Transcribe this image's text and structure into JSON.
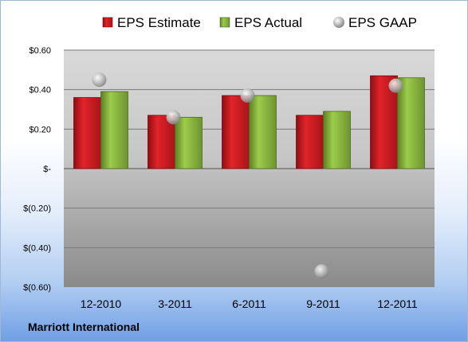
{
  "company": "Marriott International",
  "chart_data": {
    "type": "bar",
    "categories": [
      "12-2010",
      "3-2011",
      "6-2011",
      "9-2011",
      "12-2011"
    ],
    "series": [
      {
        "name": "EPS Estimate",
        "type": "bar",
        "color": "#c0141c",
        "values": [
          0.36,
          0.27,
          0.37,
          0.27,
          0.47
        ]
      },
      {
        "name": "EPS Actual",
        "type": "bar",
        "color": "#7fa83a",
        "values": [
          0.39,
          0.26,
          0.37,
          0.29,
          0.46
        ]
      },
      {
        "name": "EPS GAAP",
        "type": "scatter",
        "color": "#a8a8a8",
        "values": [
          0.45,
          0.26,
          0.37,
          -0.52,
          0.42
        ]
      }
    ],
    "y_ticks": [
      {
        "value": 0.6,
        "label": "$0.60"
      },
      {
        "value": 0.4,
        "label": "$0.40"
      },
      {
        "value": 0.2,
        "label": "$0.20"
      },
      {
        "value": 0,
        "label": "$-"
      },
      {
        "value": -0.2,
        "label": "$(0.20)"
      },
      {
        "value": -0.4,
        "label": "$(0.40)"
      },
      {
        "value": -0.6,
        "label": "$(0.60)"
      }
    ],
    "ylim": [
      -0.6,
      0.6
    ],
    "grid": true,
    "legend_position": "top"
  }
}
